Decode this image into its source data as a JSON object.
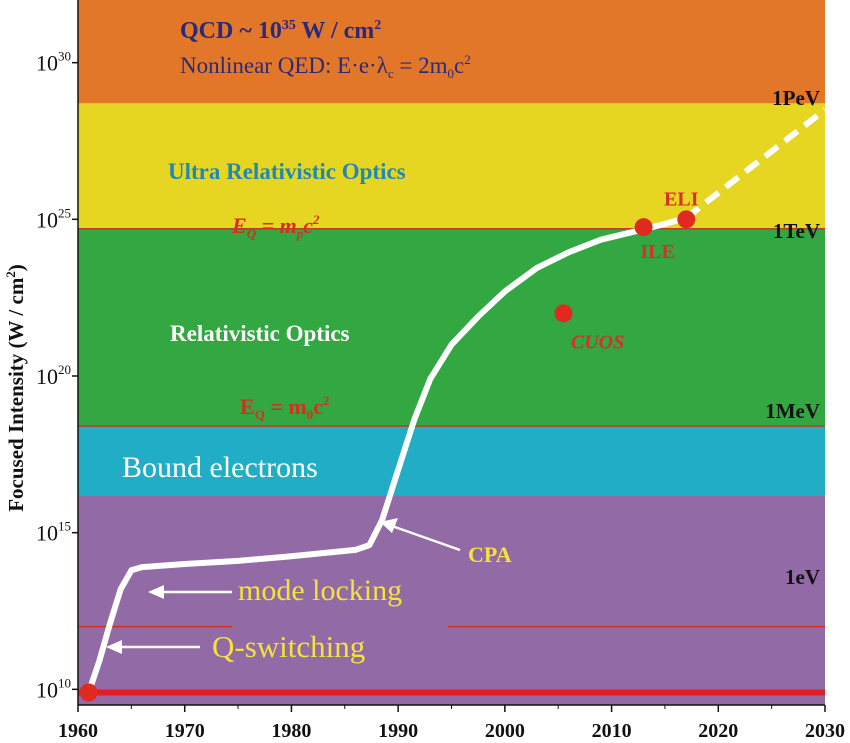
{
  "chart_data": {
    "type": "line",
    "ylabel": "Focused Intensity (W / cm²)",
    "ylabel_main": "Focused Intensity (W / cm",
    "ylabel_sup": "2",
    "ylabel_end": ")",
    "y_scale": "log",
    "xlim": [
      1960,
      2030
    ],
    "ylim": [
      9.5,
      32
    ],
    "x_ticks": [
      "1960",
      "1970",
      "1980",
      "1990",
      "2000",
      "2010",
      "2020",
      "2030"
    ],
    "y_ticks": [
      {
        "base": "10",
        "exp": "10",
        "value": 10
      },
      {
        "base": "10",
        "exp": "15",
        "value": 15
      },
      {
        "base": "10",
        "exp": "20",
        "value": 20
      },
      {
        "base": "10",
        "exp": "25",
        "value": 25
      },
      {
        "base": "10",
        "exp": "30",
        "value": 30
      }
    ],
    "bands": [
      {
        "name": "qcd",
        "from": 28.7,
        "to": 32,
        "color": "#e2772a"
      },
      {
        "name": "ultra",
        "from": 24.7,
        "to": 28.7,
        "color": "#e6d622"
      },
      {
        "name": "relativistic",
        "from": 18.4,
        "to": 24.7,
        "color": "#33a742"
      },
      {
        "name": "bound",
        "from": 16.2,
        "to": 18.4,
        "color": "#22adc7"
      },
      {
        "name": "low",
        "from": 9.5,
        "to": 16.2,
        "color": "#916aa6"
      }
    ],
    "band_labels": {
      "qcd_main": "QCD ~ 10",
      "qcd_exp": "35",
      "qcd_unit": " W / cm",
      "qcd_unit_exp": "2",
      "qed_text": "Nonlinear QED: E·e·λ",
      "qed_sub": "c",
      "qed_eq": " = 2m",
      "qed_sub2": "0",
      "qed_end": "c",
      "qed_sup": "2",
      "ultra": "Ultra Relativistic Optics",
      "relativistic": "Relativistic Optics",
      "bound": "Bound electrons"
    },
    "threshold_lines": [
      {
        "energy": "1PeV",
        "value": 29.0
      },
      {
        "energy": "1TeV",
        "value": 24.7,
        "eq_main": "E",
        "eq_sub": "Q",
        "eq_eq": " = m",
        "eq_sub2": "p",
        "eq_end": "c",
        "eq_sup": "2"
      },
      {
        "energy": "1MeV",
        "value": 18.4,
        "eq_main": "E",
        "eq_sub": "Q",
        "eq_eq": " = m",
        "eq_sub2": "0",
        "eq_end": "c",
        "eq_sup": "2"
      },
      {
        "energy": "1eV",
        "value": 12.0
      }
    ],
    "base_line": {
      "value": 9.9,
      "color": "#e02020"
    },
    "series": [
      {
        "style": "solid",
        "color": "#ffffff",
        "points": [
          [
            1961,
            9.9
          ],
          [
            1962,
            10.9
          ],
          [
            1963,
            12.1
          ],
          [
            1964,
            13.2
          ],
          [
            1965,
            13.8
          ],
          [
            1966,
            13.9
          ],
          [
            1970,
            14.0
          ],
          [
            1975,
            14.1
          ],
          [
            1980,
            14.25
          ],
          [
            1986,
            14.45
          ],
          [
            1987.3,
            14.6
          ],
          [
            1988.5,
            15.4
          ],
          [
            1990,
            17.0
          ],
          [
            1991.5,
            18.6
          ],
          [
            1993,
            19.9
          ],
          [
            1995,
            21.0
          ],
          [
            1997.5,
            21.9
          ],
          [
            2000,
            22.7
          ],
          [
            2003,
            23.45
          ],
          [
            2006,
            23.95
          ],
          [
            2009,
            24.35
          ],
          [
            2012,
            24.6
          ],
          [
            2015,
            24.85
          ],
          [
            2017,
            25.05
          ]
        ]
      },
      {
        "style": "dashed",
        "color": "#ffffff",
        "points": [
          [
            2017,
            25.05
          ],
          [
            2030,
            28.5
          ]
        ]
      }
    ],
    "points": [
      {
        "label": "CUOS",
        "year": 2005.5,
        "value": 22.0,
        "italic": true,
        "label_pos": "below"
      },
      {
        "label": "ILE",
        "year": 2013,
        "value": 24.75,
        "italic": false,
        "label_pos": "below"
      },
      {
        "label": "ELI",
        "year": 2017,
        "value": 25.0,
        "italic": false,
        "label_pos": "above"
      },
      {
        "label": "",
        "year": 1961,
        "value": 9.9,
        "italic": false,
        "label_pos": "none"
      }
    ],
    "annotations": [
      {
        "text": "mode locking",
        "color": "#f5e23a",
        "arrow_to_year": 1964.9,
        "arrow_to_value": 12.0
      },
      {
        "text": "Q-switching",
        "color": "#f5e23a",
        "arrow_to_year": 1962.3,
        "arrow_to_value": 10.5
      },
      {
        "text": "CPA",
        "color": "#f5e23a",
        "arrow_to_year": 1989.4,
        "arrow_to_value": 14.5
      }
    ]
  }
}
